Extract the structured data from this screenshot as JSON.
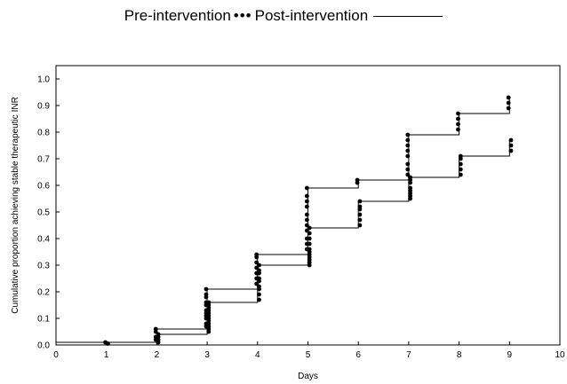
{
  "legend": {
    "pre_label": "Pre-intervention",
    "post_label": "Post-intervention"
  },
  "chart_data": {
    "type": "line",
    "title": "",
    "xlabel": "Days",
    "ylabel": "Cumulative proportion achieving stable therapeutic INR",
    "xlim": [
      0,
      10
    ],
    "ylim": [
      0,
      1.05
    ],
    "xticks": [
      "0",
      "1",
      "2",
      "3",
      "4",
      "5",
      "6",
      "7",
      "8",
      "9",
      "10"
    ],
    "yticks": [
      "0.0",
      "0.1",
      "0.2",
      "0.3",
      "0.4",
      "0.5",
      "0.6",
      "0.7",
      "0.8",
      "0.9",
      "1.0"
    ],
    "grid": false,
    "legend_position": "top",
    "colors": {
      "line": "#000000",
      "markers": "#000000"
    },
    "series": [
      {
        "name": "Pre-intervention",
        "style": "dotted",
        "x": [
          0,
          2,
          3,
          4,
          5,
          6,
          7,
          8,
          9
        ],
        "y": [
          0.0,
          0.04,
          0.16,
          0.3,
          0.44,
          0.54,
          0.63,
          0.71,
          0.77
        ],
        "events": [
          {
            "day": 1,
            "values": [
              0.005
            ]
          },
          {
            "day": 2,
            "values": [
              0.01,
              0.02,
              0.03,
              0.04
            ]
          },
          {
            "day": 3,
            "values": [
              0.05,
              0.06,
              0.07,
              0.08,
              0.09,
              0.1,
              0.11,
              0.12,
              0.13,
              0.14,
              0.15,
              0.16
            ]
          },
          {
            "day": 4,
            "values": [
              0.17,
              0.19,
              0.21,
              0.22,
              0.24,
              0.25,
              0.27,
              0.28,
              0.3
            ]
          },
          {
            "day": 5,
            "values": [
              0.3,
              0.31,
              0.32,
              0.33,
              0.34,
              0.35,
              0.36,
              0.38,
              0.4,
              0.42,
              0.44
            ]
          },
          {
            "day": 6,
            "values": [
              0.45,
              0.47,
              0.49,
              0.51,
              0.52,
              0.54
            ]
          },
          {
            "day": 7,
            "values": [
              0.55,
              0.56,
              0.57,
              0.58,
              0.59,
              0.61,
              0.62,
              0.63
            ]
          },
          {
            "day": 8,
            "values": [
              0.64,
              0.66,
              0.68,
              0.7,
              0.71
            ]
          },
          {
            "day": 9,
            "values": [
              0.73,
              0.75,
              0.77
            ]
          }
        ]
      },
      {
        "name": "Post-intervention",
        "style": "solid",
        "x": [
          0,
          2,
          3,
          4,
          5,
          6,
          7,
          8,
          9
        ],
        "y": [
          0.01,
          0.06,
          0.21,
          0.34,
          0.59,
          0.62,
          0.79,
          0.87,
          0.93
        ],
        "events": [
          {
            "day": 1,
            "values": [
              0.01
            ]
          },
          {
            "day": 2,
            "values": [
              0.02,
              0.03,
              0.05,
              0.06
            ]
          },
          {
            "day": 3,
            "values": [
              0.07,
              0.08,
              0.1,
              0.11,
              0.12,
              0.13,
              0.15,
              0.16,
              0.18,
              0.19,
              0.21
            ]
          },
          {
            "day": 4,
            "values": [
              0.23,
              0.25,
              0.27,
              0.29,
              0.31,
              0.33,
              0.34
            ]
          },
          {
            "day": 5,
            "values": [
              0.36,
              0.38,
              0.4,
              0.43,
              0.45,
              0.47,
              0.49,
              0.52,
              0.54,
              0.56,
              0.59
            ]
          },
          {
            "day": 6,
            "values": [
              0.61,
              0.62
            ]
          },
          {
            "day": 7,
            "values": [
              0.64,
              0.66,
              0.68,
              0.71,
              0.73,
              0.75,
              0.77,
              0.79
            ]
          },
          {
            "day": 8,
            "values": [
              0.81,
              0.83,
              0.85,
              0.87
            ]
          },
          {
            "day": 9,
            "values": [
              0.89,
              0.91,
              0.93
            ]
          }
        ]
      }
    ]
  }
}
